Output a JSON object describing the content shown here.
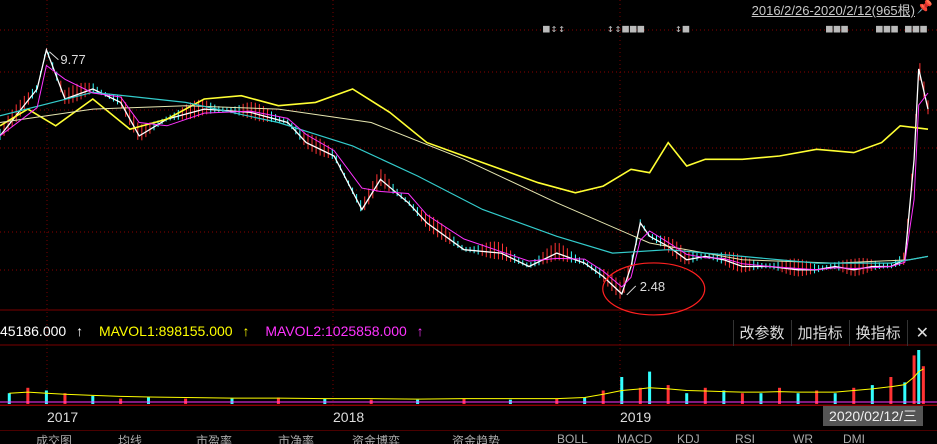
{
  "header": {
    "range_label": "2016/2/26-2020/2/12(965根)",
    "pin_icon": "pin-icon"
  },
  "annotations": {
    "high": "9.77",
    "low": "2.48",
    "highlight_color": "#ff2020"
  },
  "volume_legend": {
    "vol_value": "45186.000",
    "mavol1": "MAVOL1:898155.000",
    "mavol2": "MAVOL2:1025858.000",
    "colors": {
      "vol": "#ffffff",
      "mavol1": "#ffff00",
      "mavol2": "#ff33ff"
    }
  },
  "toolbar": {
    "change_params": "改参数",
    "add_indicator": "加指标",
    "swap_indicator": "换指标",
    "close": "✕"
  },
  "xaxis": {
    "labels": [
      "2017",
      "2018",
      "2019"
    ],
    "current_date": "2020/02/12/三"
  },
  "chart_data": {
    "type": "line",
    "title": "",
    "xlabel": "",
    "ylabel": "",
    "x_labels": [
      "2017",
      "2018",
      "2019"
    ],
    "date_range": [
      "2016-02-26",
      "2020-02-12"
    ],
    "bars_count": 965,
    "high_marker": 9.77,
    "low_marker": 2.48,
    "grid": true,
    "colors": {
      "price": "#ffffff",
      "index_overlay": "#ffff33",
      "ma_long": "#e6e6b0",
      "ma_mid": "#33cccc",
      "ma_fast": "#ff33ff",
      "up": "#ff3333",
      "down": "#33ffff"
    },
    "series": [
      {
        "name": "",
        "x": [
          0,
          0.04,
          0.05,
          0.07,
          0.1,
          0.13,
          0.15,
          0.18,
          0.22,
          0.27,
          0.31,
          0.33,
          0.36,
          0.39,
          0.41,
          0.44,
          0.46,
          0.5,
          0.54,
          0.57,
          0.6,
          0.63,
          0.65,
          0.67,
          0.68,
          0.69,
          0.7,
          0.72,
          0.74,
          0.76,
          0.78,
          0.8,
          0.83,
          0.86,
          0.88,
          0.9,
          0.92,
          0.94,
          0.96,
          0.975,
          0.985,
          0.99,
          1.0
        ],
        "y": [
          7.2,
          8.6,
          9.77,
          8.3,
          8.6,
          8.2,
          7.2,
          7.7,
          8.0,
          7.9,
          7.6,
          7.0,
          6.6,
          5.0,
          5.9,
          5.2,
          4.6,
          3.8,
          3.7,
          3.3,
          3.7,
          3.4,
          3.0,
          2.48,
          3.3,
          4.6,
          4.2,
          3.9,
          3.5,
          3.6,
          3.5,
          3.3,
          3.3,
          3.2,
          3.2,
          3.3,
          3.2,
          3.3,
          3.3,
          3.5,
          6.5,
          9.2,
          8.0
        ]
      },
      {
        "name": "",
        "x": [
          0,
          0.03,
          0.06,
          0.1,
          0.14,
          0.18,
          0.22,
          0.26,
          0.3,
          0.34,
          0.38,
          0.42,
          0.46,
          0.5,
          0.54,
          0.58,
          0.62,
          0.65,
          0.68,
          0.7,
          0.72,
          0.74,
          0.76,
          0.8,
          0.84,
          0.88,
          0.92,
          0.95,
          0.97,
          1.0
        ],
        "y": [
          7.5,
          8.0,
          7.5,
          8.3,
          7.4,
          7.7,
          8.3,
          8.4,
          8.1,
          8.2,
          8.6,
          7.9,
          7.0,
          6.6,
          6.2,
          5.8,
          5.5,
          5.7,
          6.2,
          6.1,
          7.0,
          6.3,
          6.5,
          6.5,
          6.6,
          6.8,
          6.7,
          7.0,
          7.5,
          7.4
        ]
      },
      {
        "name": "",
        "x": [
          0,
          0.1,
          0.2,
          0.3,
          0.4,
          0.5,
          0.6,
          0.7,
          0.8,
          0.9,
          0.98,
          1.0
        ],
        "y": [
          7.6,
          8.0,
          8.1,
          8.0,
          7.6,
          6.5,
          5.2,
          4.0,
          3.5,
          3.4,
          3.5,
          3.6
        ]
      },
      {
        "name": "",
        "x": [
          0,
          0.1,
          0.2,
          0.3,
          0.38,
          0.45,
          0.52,
          0.6,
          0.66,
          0.72,
          0.8,
          0.88,
          0.96,
          1.0
        ],
        "y": [
          7.8,
          8.5,
          8.2,
          7.6,
          6.9,
          6.0,
          5.0,
          4.2,
          3.7,
          3.8,
          3.6,
          3.4,
          3.4,
          3.6
        ]
      }
    ],
    "volume": {
      "x": [
        0.01,
        0.03,
        0.05,
        0.07,
        0.1,
        0.13,
        0.16,
        0.2,
        0.25,
        0.3,
        0.35,
        0.4,
        0.45,
        0.5,
        0.55,
        0.6,
        0.63,
        0.65,
        0.67,
        0.69,
        0.7,
        0.72,
        0.74,
        0.76,
        0.78,
        0.8,
        0.82,
        0.84,
        0.86,
        0.88,
        0.9,
        0.92,
        0.94,
        0.96,
        0.975,
        0.985,
        0.99,
        0.995
      ],
      "v": [
        0.2,
        0.3,
        0.25,
        0.2,
        0.15,
        0.1,
        0.12,
        0.1,
        0.1,
        0.12,
        0.1,
        0.08,
        0.08,
        0.1,
        0.08,
        0.1,
        0.12,
        0.25,
        0.5,
        0.3,
        0.6,
        0.35,
        0.2,
        0.3,
        0.25,
        0.2,
        0.2,
        0.3,
        0.2,
        0.25,
        0.2,
        0.3,
        0.35,
        0.5,
        0.4,
        0.9,
        1.0,
        0.7
      ],
      "mavol1": [
        0.2,
        0.22,
        0.2,
        0.18,
        0.16,
        0.14,
        0.13,
        0.12,
        0.11,
        0.11,
        0.1,
        0.1,
        0.09,
        0.1,
        0.1,
        0.1,
        0.12,
        0.18,
        0.25,
        0.28,
        0.3,
        0.28,
        0.25,
        0.24,
        0.23,
        0.22,
        0.22,
        0.23,
        0.22,
        0.22,
        0.22,
        0.25,
        0.28,
        0.32,
        0.36,
        0.5,
        0.6,
        0.65
      ]
    }
  },
  "top_glyphs": [
    "■↕↕",
    "↕↕■■■",
    "↕■",
    "■■■",
    "■■■",
    "■■■"
  ],
  "bottom_tabs": [
    "成交图",
    "均线",
    "市盈率",
    "市净率",
    "资金博弈",
    "资金趋势",
    "BOLL",
    "MACD",
    "KDJ",
    "RSI",
    "WR",
    "DMI"
  ]
}
